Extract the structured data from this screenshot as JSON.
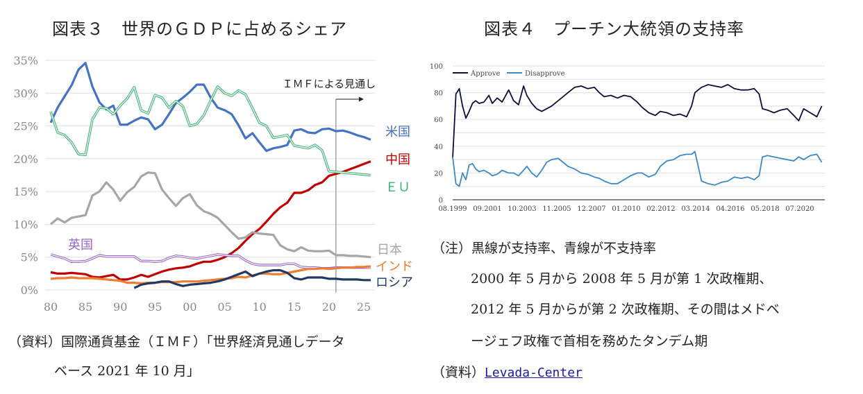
{
  "left": {
    "title": "図表３　世界のＧＤＰに占めるシェア",
    "source_line1": "（資料）国際通貨基金（ＩＭＦ）「世界経済見通しデータ",
    "source_line2": "ベース 2021 年 10 月」"
  },
  "right": {
    "title": "図表４　プーチン大統領の支持率",
    "note_line1": "（注）黒線が支持率、青線が不支持率",
    "note_line2": "2000 年 5 月から 2008 年 5 月が第 1 次政権期、",
    "note_line3": "2012 年 5 月からが第 2 次政権期、その間はメドベ",
    "note_line4": "ージェフ政権で首相を務めたタンデム期",
    "source_prefix": "（資料）",
    "source_link": "Levada-Center"
  },
  "chart_data": [
    {
      "type": "line",
      "title": "世界のＧＤＰに占めるシェア",
      "xlabel": "",
      "ylabel": "",
      "x_range": [
        1980,
        2026
      ],
      "ylim": [
        0,
        35
      ],
      "y_ticks": [
        "0%",
        "5%",
        "10%",
        "15%",
        "20%",
        "25%",
        "30%",
        "35%"
      ],
      "x_ticks": [
        "80",
        "85",
        "90",
        "95",
        "00",
        "05",
        "10",
        "15",
        "20",
        "25"
      ],
      "grid": true,
      "annotation": {
        "text": "ＩＭＦによる見通し",
        "from_year": 2021
      },
      "series": [
        {
          "name": "米国",
          "color": "#4472c4",
          "style": "solid",
          "start": 1980,
          "values": [
            25.5,
            27.8,
            29.5,
            31.2,
            33.6,
            34.6,
            31.0,
            28.6,
            27.5,
            28.1,
            25.2,
            25.2,
            25.8,
            26.3,
            26.0,
            24.5,
            25.2,
            26.8,
            28.5,
            29.3,
            30.2,
            31.3,
            31.3,
            29.3,
            27.8,
            27.4,
            26.8,
            25.1,
            23.1,
            23.9,
            22.5,
            21.2,
            21.6,
            21.8,
            22.1,
            24.3,
            24.5,
            24.0,
            23.9,
            24.5,
            24.6,
            24.2,
            24.3,
            24.0,
            23.6,
            23.3,
            22.9
          ]
        },
        {
          "name": "中国",
          "color": "#c00000",
          "style": "solid",
          "start": 1980,
          "values": [
            2.7,
            2.5,
            2.5,
            2.6,
            2.5,
            2.4,
            2.0,
            1.9,
            2.1,
            2.3,
            1.6,
            1.6,
            1.9,
            2.3,
            2.0,
            2.4,
            2.8,
            3.1,
            3.3,
            3.4,
            3.6,
            4.0,
            4.3,
            4.3,
            4.6,
            5.0,
            5.6,
            6.4,
            7.5,
            8.5,
            9.3,
            10.4,
            11.6,
            12.6,
            13.3,
            14.8,
            14.8,
            15.2,
            16.0,
            16.4,
            17.4,
            17.7,
            18.0,
            18.4,
            18.8,
            19.2,
            19.6
          ]
        },
        {
          "name": "ＥＵ",
          "color": "#3cb371",
          "style": "double",
          "start": 1980,
          "values": [
            27.2,
            24.0,
            23.6,
            22.5,
            20.7,
            20.6,
            26.0,
            27.8,
            27.7,
            26.8,
            28.1,
            29.2,
            30.9,
            27.4,
            26.9,
            29.7,
            29.3,
            27.8,
            28.8,
            28.0,
            25.0,
            25.3,
            26.6,
            28.9,
            31.0,
            30.0,
            29.6,
            30.4,
            29.8,
            27.7,
            25.5,
            25.0,
            23.2,
            23.4,
            23.6,
            22.0,
            21.8,
            21.6,
            22.1,
            21.3,
            18.1,
            18.0,
            17.9,
            17.8,
            17.7,
            17.6,
            17.5
          ]
        },
        {
          "name": "日本",
          "color": "#a6a6a6",
          "style": "solid",
          "start": 1980,
          "values": [
            10.0,
            10.9,
            10.3,
            11.0,
            11.2,
            11.4,
            14.4,
            15.0,
            16.4,
            15.3,
            13.6,
            14.9,
            15.7,
            17.3,
            17.9,
            17.8,
            15.3,
            14.0,
            12.8,
            14.0,
            14.6,
            12.9,
            12.0,
            11.6,
            11.0,
            9.9,
            8.8,
            7.8,
            8.0,
            8.8,
            8.6,
            8.5,
            8.4,
            6.8,
            6.2,
            5.9,
            6.5,
            6.0,
            5.9,
            5.9,
            6.0,
            5.3,
            5.3,
            5.2,
            5.2,
            5.1,
            5.0
          ]
        },
        {
          "name": "英国",
          "color": "#9966cc",
          "style": "double",
          "start": 1980,
          "values": [
            5.4,
            5.1,
            4.8,
            4.3,
            4.3,
            4.4,
            4.8,
            5.3,
            5.1,
            5.1,
            5.1,
            5.1,
            5.1,
            4.4,
            4.4,
            4.3,
            4.4,
            4.9,
            5.2,
            5.1,
            4.9,
            4.8,
            5.0,
            5.2,
            5.4,
            5.3,
            5.2,
            5.2,
            4.5,
            4.0,
            3.8,
            3.8,
            3.8,
            3.8,
            4.0,
            4.0,
            3.5,
            3.4,
            3.4,
            3.3,
            3.3,
            3.4,
            3.4,
            3.4,
            3.4,
            3.4,
            3.4
          ]
        },
        {
          "name": "インド",
          "color": "#ed7d31",
          "style": "solid",
          "start": 1980,
          "values": [
            1.7,
            1.8,
            1.8,
            1.9,
            1.8,
            1.8,
            1.8,
            1.7,
            1.6,
            1.5,
            1.4,
            1.1,
            1.1,
            1.0,
            1.1,
            1.1,
            1.2,
            1.2,
            1.2,
            1.3,
            1.3,
            1.3,
            1.4,
            1.5,
            1.6,
            1.7,
            1.8,
            2.0,
            1.9,
            2.2,
            2.5,
            2.5,
            2.4,
            2.4,
            2.6,
            2.8,
            3.0,
            3.2,
            3.2,
            3.3,
            3.2,
            3.3,
            3.4,
            3.4,
            3.5,
            3.5,
            3.6
          ]
        },
        {
          "name": "ロシア",
          "color": "#1f3864",
          "style": "solid",
          "start": 1992,
          "values": [
            0.3,
            0.8,
            1.0,
            1.1,
            1.3,
            1.3,
            0.9,
            0.6,
            0.8,
            0.9,
            1.0,
            1.1,
            1.3,
            1.6,
            2.0,
            2.4,
            2.8,
            2.1,
            2.5,
            2.8,
            3.0,
            3.0,
            2.6,
            1.8,
            1.6,
            1.9,
            1.9,
            1.9,
            1.7,
            1.7,
            1.6,
            1.6,
            1.6,
            1.5,
            1.5
          ]
        }
      ]
    },
    {
      "type": "line",
      "title": "",
      "xlabel": "",
      "ylabel": "",
      "ylim": [
        0,
        100
      ],
      "y_ticks": [
        "0",
        "20",
        "40",
        "60",
        "80",
        "100"
      ],
      "x_ticks": [
        "08.1999",
        "09.2001",
        "10.2003",
        "11.2005",
        "12.2007",
        "01.2010",
        "02.2012",
        "03.2014",
        "04.2016",
        "05.2018",
        "07.2020"
      ],
      "x_range": [
        1999.6,
        2022.1
      ],
      "grid": true,
      "legend": "top-left",
      "series": [
        {
          "name": "Approve",
          "color": "#0d0d3a",
          "x": [
            1999.6,
            1999.8,
            2000.0,
            2000.2,
            2000.4,
            2000.6,
            2000.8,
            2001.0,
            2001.2,
            2001.5,
            2001.8,
            2002.0,
            2002.3,
            2002.6,
            2003.0,
            2003.3,
            2003.6,
            2003.9,
            2004.1,
            2004.4,
            2004.7,
            2005.0,
            2005.3,
            2005.6,
            2006.0,
            2006.3,
            2006.6,
            2007.0,
            2007.4,
            2007.8,
            2008.2,
            2008.5,
            2008.8,
            2009.2,
            2009.6,
            2010.0,
            2010.4,
            2010.8,
            2011.1,
            2011.5,
            2011.9,
            2012.2,
            2012.6,
            2013.0,
            2013.4,
            2013.8,
            2014.1,
            2014.3,
            2014.7,
            2015.1,
            2015.5,
            2015.9,
            2016.3,
            2016.7,
            2017.1,
            2017.5,
            2017.9,
            2018.2,
            2018.4,
            2018.7,
            2019.1,
            2019.5,
            2019.9,
            2020.3,
            2020.6,
            2020.9,
            2021.3,
            2021.7,
            2022.0
          ],
          "values": [
            31,
            79,
            83,
            70,
            61,
            66,
            72,
            74,
            72,
            73,
            78,
            72,
            76,
            73,
            82,
            74,
            71,
            85,
            78,
            72,
            68,
            66,
            68,
            70,
            74,
            77,
            80,
            84,
            85,
            83,
            84,
            80,
            77,
            78,
            76,
            78,
            77,
            73,
            69,
            65,
            63,
            66,
            65,
            63,
            64,
            62,
            70,
            80,
            84,
            86,
            85,
            84,
            86,
            83,
            82,
            82,
            83,
            79,
            68,
            67,
            65,
            67,
            68,
            63,
            59,
            68,
            65,
            62,
            70
          ]
        },
        {
          "name": "Disapprove",
          "color": "#3a88c8",
          "x": [
            1999.6,
            1999.8,
            2000.0,
            2000.2,
            2000.4,
            2000.6,
            2000.8,
            2001.0,
            2001.2,
            2001.5,
            2001.8,
            2002.0,
            2002.3,
            2002.6,
            2003.0,
            2003.3,
            2003.6,
            2003.9,
            2004.1,
            2004.4,
            2004.7,
            2005.0,
            2005.3,
            2005.6,
            2006.0,
            2006.3,
            2006.6,
            2007.0,
            2007.4,
            2007.8,
            2008.2,
            2008.5,
            2008.8,
            2009.2,
            2009.6,
            2010.0,
            2010.4,
            2010.8,
            2011.1,
            2011.5,
            2011.9,
            2012.2,
            2012.6,
            2013.0,
            2013.4,
            2013.8,
            2014.1,
            2014.3,
            2014.7,
            2015.1,
            2015.5,
            2015.9,
            2016.3,
            2016.7,
            2017.1,
            2017.5,
            2017.9,
            2018.2,
            2018.4,
            2018.7,
            2019.1,
            2019.5,
            2019.9,
            2020.3,
            2020.6,
            2020.9,
            2021.3,
            2021.7,
            2022.0
          ],
          "values": [
            32,
            12,
            10,
            20,
            15,
            26,
            27,
            23,
            21,
            22,
            20,
            18,
            19,
            22,
            20,
            20,
            18,
            22,
            25,
            20,
            17,
            22,
            28,
            30,
            31,
            28,
            25,
            23,
            20,
            19,
            17,
            16,
            14,
            12,
            12,
            15,
            18,
            20,
            20,
            17,
            19,
            25,
            29,
            30,
            33,
            34,
            34,
            36,
            14,
            12,
            11,
            13,
            14,
            17,
            16,
            17,
            15,
            18,
            32,
            33,
            32,
            31,
            30,
            29,
            32,
            30,
            33,
            34,
            28
          ]
        }
      ]
    }
  ]
}
